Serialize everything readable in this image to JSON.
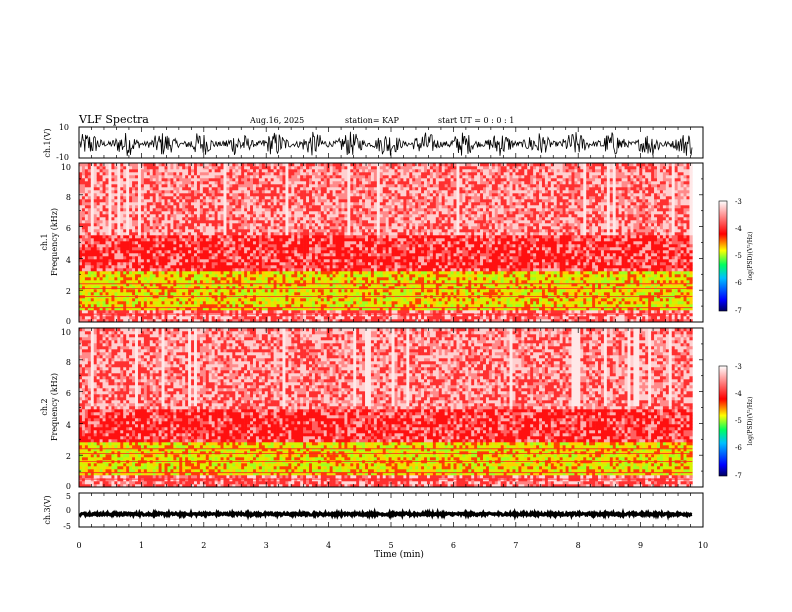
{
  "header": {
    "title": "VLF Spectra",
    "date": "Aug.16, 2025",
    "station": "station= KAP",
    "start": "start UT = 0 : 0 : 1"
  },
  "chart_data": [
    {
      "type": "line",
      "panel": "ch1-waveform",
      "ylabel": "ch.1(V)",
      "ylim": [
        -10,
        10
      ],
      "yticks": [
        {
          "v": 10,
          "label": "10"
        },
        {
          "v": -10,
          "label": "-10"
        }
      ],
      "description_values": {
        "center": -1,
        "amplitude": 5,
        "period_min": 0.6
      }
    },
    {
      "type": "heatmap",
      "panel": "ch1-spectrogram",
      "ylabel_lines": [
        "ch.1",
        "Frequency (kHz)"
      ],
      "ylim": [
        0,
        10
      ],
      "yticks": [
        "0",
        "2",
        "4",
        "6",
        "8",
        "10"
      ],
      "bands": [
        {
          "from": 0,
          "to": 3.3,
          "level": "-5"
        },
        {
          "from": 3.3,
          "to": 5.5,
          "level": "-4"
        },
        {
          "from": 5.5,
          "to": 10,
          "level": "-3.5"
        }
      ],
      "colorbar": {
        "label": "log(PSD)(V²/Hz)",
        "ticks": [
          "-3",
          "-4",
          "-5",
          "-6",
          "-7"
        ]
      }
    },
    {
      "type": "heatmap",
      "panel": "ch2-spectrogram",
      "ylabel_lines": [
        "ch.2",
        "Frequency (kHz)"
      ],
      "ylim": [
        0,
        10
      ],
      "yticks": [
        "0",
        "2",
        "4",
        "6",
        "8",
        "10"
      ],
      "bands": [
        {
          "from": 0,
          "to": 2.8,
          "level": "-5"
        },
        {
          "from": 2.8,
          "to": 5,
          "level": "-4"
        },
        {
          "from": 5,
          "to": 10,
          "level": "-3.5"
        }
      ],
      "colorbar": {
        "label": "log(PSD)(V²/Hz)",
        "ticks": [
          "-3",
          "-4",
          "-5",
          "-6",
          "-7"
        ]
      }
    },
    {
      "type": "line",
      "panel": "ch3-waveform",
      "ylabel": "ch.3(V)",
      "ylim": [
        -5,
        5
      ],
      "yticks": [
        {
          "v": 5,
          "label": "5"
        },
        {
          "v": 0,
          "label": "0"
        },
        {
          "v": -5,
          "label": "-5"
        }
      ],
      "description_values": {
        "center": -1.2,
        "amplitude": 0.35
      }
    }
  ],
  "xaxis": {
    "label": "Time (min)",
    "ticks": [
      "0",
      "1",
      "2",
      "3",
      "4",
      "5",
      "6",
      "7",
      "8",
      "9",
      "10"
    ],
    "xlim": [
      0,
      10
    ],
    "data_end": 9.83
  },
  "colors": {
    "colormap": [
      "#000080",
      "#0000ff",
      "#00c0ff",
      "#00ff60",
      "#ffff00",
      "#ff0000",
      "#ffffff"
    ]
  }
}
